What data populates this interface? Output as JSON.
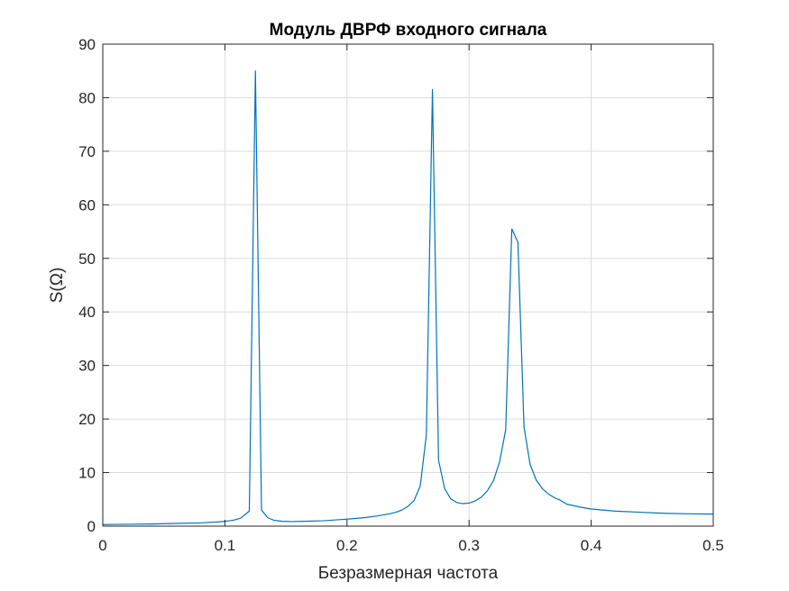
{
  "chart_data": {
    "type": "line",
    "title": "Модуль ДВРФ входного сигнала",
    "xlabel": "Безразмерная частота",
    "ylabel": "S(Ω)",
    "xlim": [
      0,
      0.5
    ],
    "ylim": [
      0,
      90
    ],
    "grid": true,
    "x_ticks": [
      "0",
      "0.1",
      "0.2",
      "0.3",
      "0.4",
      "0.5"
    ],
    "y_ticks": [
      "0",
      "10",
      "20",
      "30",
      "40",
      "50",
      "60",
      "70",
      "80",
      "90"
    ],
    "line_color": "#0072BD",
    "series": [
      {
        "x": [
          0,
          0.02,
          0.04,
          0.06,
          0.08,
          0.095,
          0.1,
          0.107,
          0.113,
          0.12,
          0.125,
          0.13,
          0.135,
          0.14,
          0.147,
          0.155,
          0.165,
          0.18,
          0.2,
          0.215,
          0.225,
          0.235,
          0.24,
          0.245,
          0.25,
          0.255,
          0.26,
          0.265,
          0.27,
          0.275,
          0.28,
          0.285,
          0.29,
          0.295,
          0.3,
          0.305,
          0.31,
          0.315,
          0.32,
          0.325,
          0.33,
          0.335,
          0.34,
          0.345,
          0.35,
          0.355,
          0.36,
          0.365,
          0.37,
          0.375,
          0.38,
          0.39,
          0.4,
          0.42,
          0.44,
          0.46,
          0.48,
          0.5
        ],
        "y": [
          0.3,
          0.35,
          0.4,
          0.5,
          0.6,
          0.8,
          0.9,
          1.1,
          1.5,
          2.8,
          85,
          3.0,
          1.6,
          1.1,
          0.9,
          0.85,
          0.9,
          1.0,
          1.3,
          1.6,
          1.9,
          2.3,
          2.6,
          3.0,
          3.7,
          4.8,
          7.5,
          17,
          81.5,
          12.3,
          7.0,
          5.1,
          4.4,
          4.2,
          4.3,
          4.7,
          5.4,
          6.6,
          8.5,
          12,
          18,
          55.5,
          53,
          18.5,
          11.5,
          8.6,
          7.0,
          6.0,
          5.3,
          4.8,
          4.1,
          3.6,
          3.2,
          2.8,
          2.6,
          2.4,
          2.3,
          2.25
        ]
      }
    ]
  }
}
